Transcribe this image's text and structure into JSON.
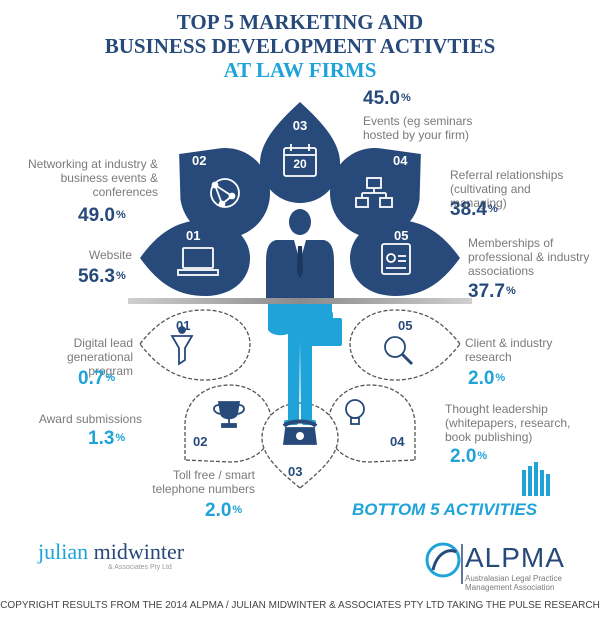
{
  "title": {
    "line1": "TOP 5 MARKETING AND",
    "line2": "BUSINESS DEVELOPMENT ACTIVTIES",
    "line3": "AT LAW FIRMS"
  },
  "top5": [
    {
      "num": "01",
      "label": "Website",
      "value": "56.3",
      "unit": "%",
      "icon": "computer-icon"
    },
    {
      "num": "02",
      "label": "Networking at industry & business events & conferences",
      "value": "49.0",
      "unit": "%",
      "icon": "globe-network-icon"
    },
    {
      "num": "03",
      "label": "Events (eg seminars hosted by your firm)",
      "value": "45.0",
      "unit": "%",
      "icon": "calendar-icon",
      "icon_text": "20"
    },
    {
      "num": "04",
      "label": "Referral relationships (cultivating and managing)",
      "value": "38.4",
      "unit": "%",
      "icon": "org-chart-icon"
    },
    {
      "num": "05",
      "label": "Memberships of professional & industry associations",
      "value": "37.7",
      "unit": "%",
      "icon": "id-badge-icon"
    }
  ],
  "bottom5": [
    {
      "num": "01",
      "label": "Digital lead generational program",
      "value": "0.7",
      "unit": "%",
      "icon": "funnel-person-icon"
    },
    {
      "num": "02",
      "label": "Award submissions",
      "value": "1.3",
      "unit": "%",
      "icon": "trophy-icon"
    },
    {
      "num": "03",
      "label": "Toll free / smart telephone numbers",
      "value": "2.0",
      "unit": "%",
      "icon": "telephone-icon"
    },
    {
      "num": "04",
      "label": "Thought leadership (whitepapers, research, book publishing)",
      "value": "2.0",
      "unit": "%",
      "icon": "lightbulb-icon"
    },
    {
      "num": "05",
      "label": "Client & industry research",
      "value": "2.0",
      "unit": "%",
      "icon": "magnifier-icon"
    }
  ],
  "bottom_heading": "BOTTOM 5 ACTIVITIES",
  "logos": {
    "left_name_a": "julian",
    "left_name_b": "midwinter",
    "left_sub": "& Associates Pty Ltd",
    "right_name": "ALPMA",
    "right_sub": "Australasian Legal Practice Management Association"
  },
  "copyright": "COPYRIGHT RESULTS FROM THE 2014 ALPMA / JULIAN MIDWINTER & ASSOCIATES PTY LTD TAKING THE PULSE RESEARCH",
  "colors": {
    "dark": "#274a7a",
    "light": "#1fa3d8",
    "grey": "#7a7a7a"
  }
}
